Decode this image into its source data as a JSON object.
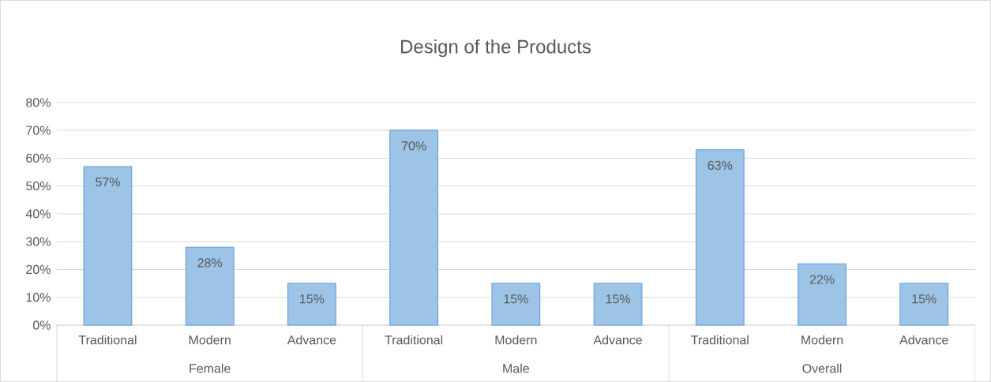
{
  "chart_data": {
    "type": "bar",
    "title": "Design of the Products",
    "categories": [
      "Traditional",
      "Modern",
      "Advance",
      "Traditional",
      "Modern",
      "Advance",
      "Traditional",
      "Modern",
      "Advance"
    ],
    "values": [
      57,
      28,
      15,
      70,
      15,
      15,
      63,
      22,
      15
    ],
    "value_labels": [
      "57%",
      "28%",
      "15%",
      "70%",
      "15%",
      "15%",
      "63%",
      "22%",
      "15%"
    ],
    "color": "#9dc3e6",
    "ylim": [
      0,
      80
    ],
    "yticks": [
      {
        "value": 0,
        "label": "0%"
      },
      {
        "value": 10,
        "label": "10%"
      },
      {
        "value": 20,
        "label": "20%"
      },
      {
        "value": 30,
        "label": "30%"
      },
      {
        "value": 40,
        "label": "40%"
      },
      {
        "value": 50,
        "label": "50%"
      },
      {
        "value": 60,
        "label": "60%"
      },
      {
        "value": 70,
        "label": "70%"
      },
      {
        "value": 80,
        "label": "80%"
      }
    ],
    "grid": "y",
    "annotations": [
      "Female",
      "Male",
      "Overall"
    ]
  }
}
